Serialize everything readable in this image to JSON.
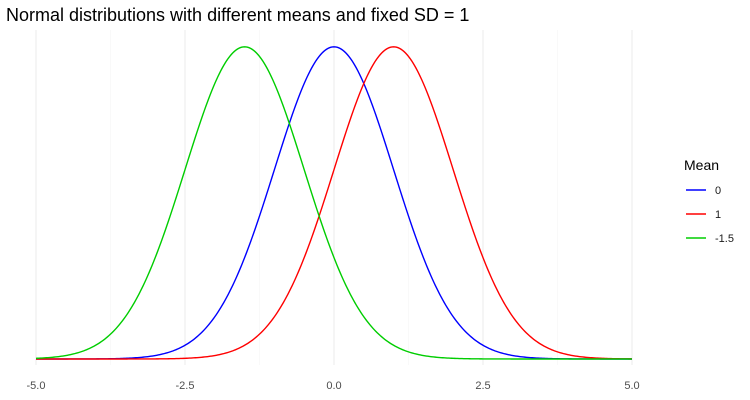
{
  "chart_data": {
    "type": "line",
    "title": "Normal distributions with different means and fixed SD = 1",
    "xlabel": "",
    "ylabel": "",
    "xlim": [
      -5,
      5
    ],
    "ylim": [
      0,
      0.4
    ],
    "x_ticks": [
      -5.0,
      -2.5,
      0.0,
      2.5,
      5.0
    ],
    "x_tick_labels": [
      "-5.0",
      "-2.5",
      "0.0",
      "2.5",
      "5.0"
    ],
    "y_ticks_shown": false,
    "grid": true,
    "legend": {
      "title": "Mean",
      "placement": "right"
    },
    "sd": 1,
    "series": [
      {
        "name": "0",
        "mean": 0,
        "color": "#0000ff"
      },
      {
        "name": "1",
        "mean": 1,
        "color": "#ff0000"
      },
      {
        "name": "-1.5",
        "mean": -1.5,
        "color": "#00cd00"
      }
    ]
  }
}
